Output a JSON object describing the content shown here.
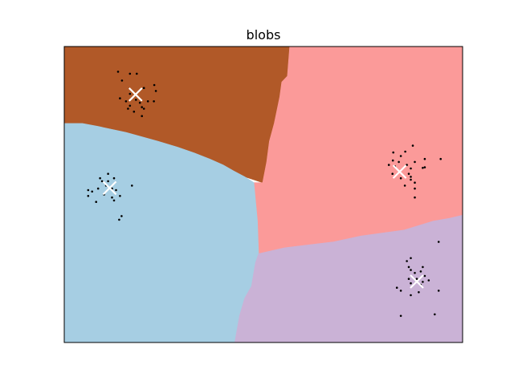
{
  "chart_data": {
    "type": "scatter",
    "title": "blobs",
    "xlabel": "",
    "ylabel": "",
    "xlim": [
      0,
      1
    ],
    "ylim": [
      0,
      1
    ],
    "grid": false,
    "ticks_visible": false,
    "decision_regions": [
      {
        "name": "cluster_0",
        "color": "#b15928",
        "polygon": [
          [
            0,
            1
          ],
          [
            0.566,
            1
          ],
          [
            0.56,
            0.9
          ],
          [
            0.546,
            0.88
          ],
          [
            0.541,
            0.83
          ],
          [
            0.527,
            0.74
          ],
          [
            0.515,
            0.68
          ],
          [
            0.508,
            0.61
          ],
          [
            0.498,
            0.54
          ],
          [
            0.453,
            0.56
          ],
          [
            0.425,
            0.58
          ],
          [
            0.399,
            0.6
          ],
          [
            0.365,
            0.62
          ],
          [
            0.327,
            0.64
          ],
          [
            0.285,
            0.66
          ],
          [
            0.235,
            0.68
          ],
          [
            0.155,
            0.71
          ],
          [
            0.085,
            0.73
          ],
          [
            0.046,
            0.74
          ],
          [
            0,
            0.74
          ]
        ]
      },
      {
        "name": "cluster_1",
        "color": "#fb9a99",
        "polygon": [
          [
            0.566,
            1
          ],
          [
            1,
            1
          ],
          [
            1,
            0.43
          ],
          [
            0.968,
            0.42
          ],
          [
            0.926,
            0.41
          ],
          [
            0.853,
            0.38
          ],
          [
            0.745,
            0.36
          ],
          [
            0.676,
            0.34
          ],
          [
            0.553,
            0.32
          ],
          [
            0.488,
            0.3
          ],
          [
            0.485,
            0.41
          ],
          [
            0.476,
            0.54
          ],
          [
            0.498,
            0.54
          ],
          [
            0.508,
            0.61
          ],
          [
            0.515,
            0.68
          ],
          [
            0.527,
            0.74
          ],
          [
            0.541,
            0.83
          ],
          [
            0.546,
            0.88
          ],
          [
            0.56,
            0.9
          ]
        ]
      },
      {
        "name": "cluster_2",
        "color": "#a6cee3",
        "polygon": [
          [
            0,
            0.74
          ],
          [
            0.046,
            0.74
          ],
          [
            0.085,
            0.73
          ],
          [
            0.155,
            0.71
          ],
          [
            0.235,
            0.68
          ],
          [
            0.285,
            0.66
          ],
          [
            0.327,
            0.64
          ],
          [
            0.365,
            0.62
          ],
          [
            0.399,
            0.6
          ],
          [
            0.425,
            0.58
          ],
          [
            0.453,
            0.56
          ],
          [
            0.476,
            0.54
          ],
          [
            0.485,
            0.41
          ],
          [
            0.488,
            0.3
          ],
          [
            0.48,
            0.27
          ],
          [
            0.47,
            0.19
          ],
          [
            0.453,
            0.15
          ],
          [
            0.44,
            0.09
          ],
          [
            0.428,
            0
          ],
          [
            0,
            0
          ]
        ]
      },
      {
        "name": "cluster_3",
        "color": "#cab2d6",
        "polygon": [
          [
            0.488,
            0.3
          ],
          [
            0.553,
            0.32
          ],
          [
            0.676,
            0.34
          ],
          [
            0.745,
            0.36
          ],
          [
            0.853,
            0.38
          ],
          [
            0.926,
            0.41
          ],
          [
            0.968,
            0.42
          ],
          [
            1,
            0.43
          ],
          [
            1,
            0
          ],
          [
            0.428,
            0
          ],
          [
            0.44,
            0.09
          ],
          [
            0.453,
            0.15
          ],
          [
            0.47,
            0.19
          ],
          [
            0.48,
            0.27
          ]
        ]
      }
    ],
    "points": [
      [
        0.135,
        0.915
      ],
      [
        0.165,
        0.908
      ],
      [
        0.182,
        0.908
      ],
      [
        0.145,
        0.885
      ],
      [
        0.226,
        0.87
      ],
      [
        0.23,
        0.85
      ],
      [
        0.2,
        0.86
      ],
      [
        0.165,
        0.84
      ],
      [
        0.14,
        0.825
      ],
      [
        0.155,
        0.815
      ],
      [
        0.18,
        0.82
      ],
      [
        0.19,
        0.81
      ],
      [
        0.165,
        0.8
      ],
      [
        0.195,
        0.795
      ],
      [
        0.225,
        0.815
      ],
      [
        0.16,
        0.79
      ],
      [
        0.175,
        0.78
      ],
      [
        0.2,
        0.79
      ],
      [
        0.21,
        0.815
      ],
      [
        0.195,
        0.765
      ],
      [
        0.11,
        0.57
      ],
      [
        0.125,
        0.555
      ],
      [
        0.11,
        0.545
      ],
      [
        0.09,
        0.555
      ],
      [
        0.095,
        0.545
      ],
      [
        0.105,
        0.53
      ],
      [
        0.12,
        0.52
      ],
      [
        0.13,
        0.515
      ],
      [
        0.085,
        0.52
      ],
      [
        0.06,
        0.515
      ],
      [
        0.07,
        0.51
      ],
      [
        0.14,
        0.495
      ],
      [
        0.1,
        0.5
      ],
      [
        0.12,
        0.49
      ],
      [
        0.125,
        0.48
      ],
      [
        0.08,
        0.475
      ],
      [
        0.17,
        0.53
      ],
      [
        0.138,
        0.415
      ],
      [
        0.144,
        0.427
      ],
      [
        0.06,
        0.495
      ],
      [
        0.875,
        0.665
      ],
      [
        0.856,
        0.645
      ],
      [
        0.845,
        0.63
      ],
      [
        0.825,
        0.615
      ],
      [
        0.815,
        0.6
      ],
      [
        0.83,
        0.595
      ],
      [
        0.84,
        0.61
      ],
      [
        0.86,
        0.6
      ],
      [
        0.88,
        0.61
      ],
      [
        0.905,
        0.62
      ],
      [
        0.9,
        0.59
      ],
      [
        0.865,
        0.57
      ],
      [
        0.845,
        0.555
      ],
      [
        0.87,
        0.55
      ],
      [
        0.855,
        0.53
      ],
      [
        0.88,
        0.52
      ],
      [
        0.88,
        0.54
      ],
      [
        0.87,
        0.56
      ],
      [
        0.88,
        0.49
      ],
      [
        0.945,
        0.62
      ],
      [
        0.826,
        0.642
      ],
      [
        0.87,
        0.588
      ],
      [
        0.905,
        0.592
      ],
      [
        0.824,
        0.57
      ],
      [
        0.94,
        0.34
      ],
      [
        0.86,
        0.275
      ],
      [
        0.865,
        0.255
      ],
      [
        0.9,
        0.255
      ],
      [
        0.87,
        0.245
      ],
      [
        0.88,
        0.235
      ],
      [
        0.895,
        0.24
      ],
      [
        0.905,
        0.225
      ],
      [
        0.865,
        0.215
      ],
      [
        0.9,
        0.205
      ],
      [
        0.87,
        0.2
      ],
      [
        0.895,
        0.195
      ],
      [
        0.915,
        0.21
      ],
      [
        0.835,
        0.185
      ],
      [
        0.845,
        0.175
      ],
      [
        0.89,
        0.17
      ],
      [
        0.87,
        0.16
      ],
      [
        0.94,
        0.175
      ],
      [
        0.93,
        0.095
      ],
      [
        0.845,
        0.09
      ],
      [
        0.885,
        0.215
      ],
      [
        0.87,
        0.285
      ]
    ],
    "centroids": [
      [
        0.179,
        0.838
      ],
      [
        0.114,
        0.522
      ],
      [
        0.842,
        0.577
      ],
      [
        0.885,
        0.206
      ]
    ],
    "centroid_marker": "x",
    "centroid_color": "#ffffff",
    "point_color": "#000000"
  }
}
